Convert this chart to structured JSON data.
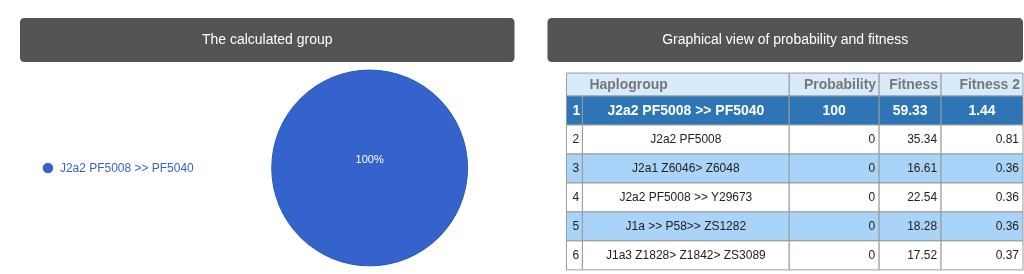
{
  "chart_data": [
    {
      "type": "pie",
      "title": "The calculated group",
      "categories": [
        "J2a2 PF5008 >> PF5040"
      ],
      "values": [
        100
      ],
      "colors": [
        "#3563cc"
      ],
      "value_labels": [
        "100%"
      ],
      "legend": "left"
    },
    {
      "type": "heatmap",
      "title": "Graphical view of probability and fitness",
      "ylabel": "Haplogroup",
      "categories": [
        "Probability",
        "Fitness",
        "Fitness 2"
      ],
      "y2_categories": [
        "1",
        "2",
        "3",
        "4",
        "5",
        "6"
      ],
      "y_categories": [
        "J2a2 PF5008 >> PF5040",
        "J2a2 PF5008",
        "J2a1 Z6046> Z6048",
        "J2a2 PF5008 >> Y29673",
        "J1a >> P58>> ZS1282",
        "J1a3 Z1828> Z1842> ZS3089"
      ],
      "colors": [
        "#2e75b6",
        "#ffffff",
        "#a9d4f8",
        "#ffffff",
        "#a9d4f8",
        "#ffffff"
      ],
      "cells": [
        [
          100,
          59.33,
          1.44
        ],
        [
          0,
          35.34,
          0.81
        ],
        [
          0,
          16.61,
          0.36
        ],
        [
          0,
          22.54,
          0.36
        ],
        [
          0,
          18.28,
          0.36
        ],
        [
          0,
          17.52,
          0.37
        ]
      ],
      "data_labels": true
    }
  ]
}
